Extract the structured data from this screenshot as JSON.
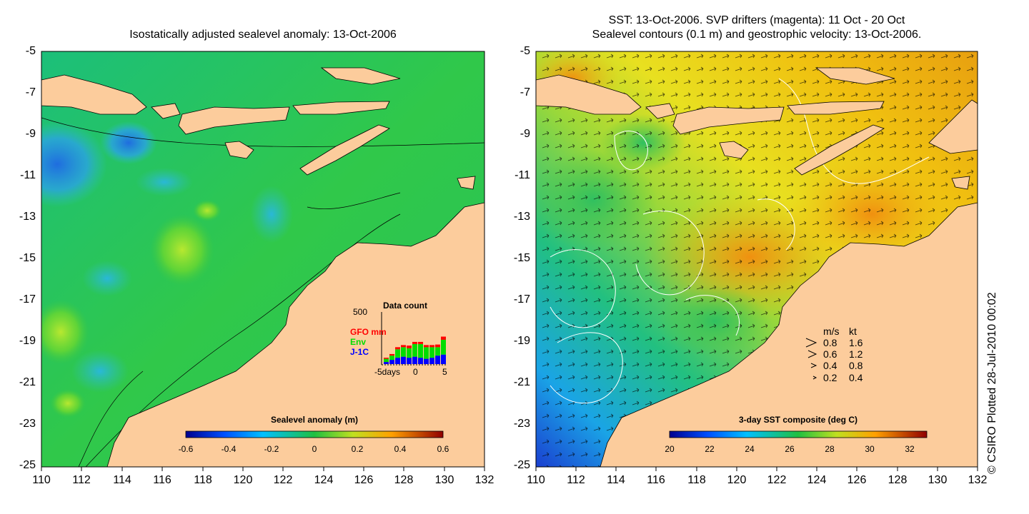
{
  "left_panel": {
    "title": "Isostatically adjusted sealevel anomaly: 13-Oct-2006",
    "y_ticks": [
      "-5",
      "-7",
      "-9",
      "-11",
      "-13",
      "-15",
      "-17",
      "-19",
      "-21",
      "-23",
      "-25"
    ],
    "x_ticks": [
      "110",
      "112",
      "114",
      "116",
      "118",
      "120",
      "122",
      "124",
      "126",
      "128",
      "130",
      "132"
    ],
    "colorbar": {
      "label": "Sealevel anomaly (m)",
      "ticks": [
        "-0.6",
        "-0.4",
        "-0.2",
        "0",
        "0.2",
        "0.4",
        "0.6"
      ]
    },
    "data_count": {
      "title": "Data count",
      "y_max": "500",
      "labels": [
        {
          "text": "GFO mm",
          "color": "#ff0000"
        },
        {
          "text": "Env",
          "color": "#00dd00"
        },
        {
          "text": "J-1C",
          "color": "#0000ff"
        }
      ],
      "x_labels": [
        "-5days",
        "0",
        "5"
      ],
      "bars": [
        {
          "blue": 20,
          "green": 30,
          "red": 10
        },
        {
          "blue": 40,
          "green": 40,
          "red": 15
        },
        {
          "blue": 60,
          "green": 80,
          "red": 20
        },
        {
          "blue": 70,
          "green": 90,
          "red": 20
        },
        {
          "blue": 60,
          "green": 90,
          "red": 25
        },
        {
          "blue": 70,
          "green": 120,
          "red": 20
        },
        {
          "blue": 60,
          "green": 130,
          "red": 20
        },
        {
          "blue": 50,
          "green": 110,
          "red": 20
        },
        {
          "blue": 60,
          "green": 100,
          "red": 20
        },
        {
          "blue": 80,
          "green": 80,
          "red": 25
        },
        {
          "blue": 90,
          "green": 140,
          "red": 30
        }
      ]
    }
  },
  "right_panel": {
    "title_line1": "SST: 13-Oct-2006. SVP drifters (magenta): 11 Oct - 20 Oct",
    "title_line2": "Sealevel contours (0.1 m) and geostrophic velocity: 13-Oct-2006.",
    "y_ticks": [
      "-5",
      "-7",
      "-9",
      "-11",
      "-13",
      "-15",
      "-17",
      "-19",
      "-21",
      "-23",
      "-25"
    ],
    "x_ticks": [
      "110",
      "112",
      "114",
      "116",
      "118",
      "120",
      "122",
      "124",
      "126",
      "128",
      "130",
      "132"
    ],
    "colorbar": {
      "label": "3-day SST composite (deg C)",
      "ticks": [
        "20",
        "22",
        "24",
        "26",
        "28",
        "30",
        "32"
      ]
    },
    "velocity_legend": {
      "header_ms": "m/s",
      "header_kt": "kt",
      "rows": [
        {
          "ms": "0.8",
          "kt": "1.6"
        },
        {
          "ms": "0.6",
          "kt": "1.2"
        },
        {
          "ms": "0.4",
          "kt": "0.8"
        },
        {
          "ms": "0.2",
          "kt": "0.4"
        }
      ]
    }
  },
  "credit": "© CSIRO Plotted 28-Jul-2010 00:02",
  "colors": {
    "land": "#fccc9c",
    "ocean_mid": "#22bb66"
  }
}
